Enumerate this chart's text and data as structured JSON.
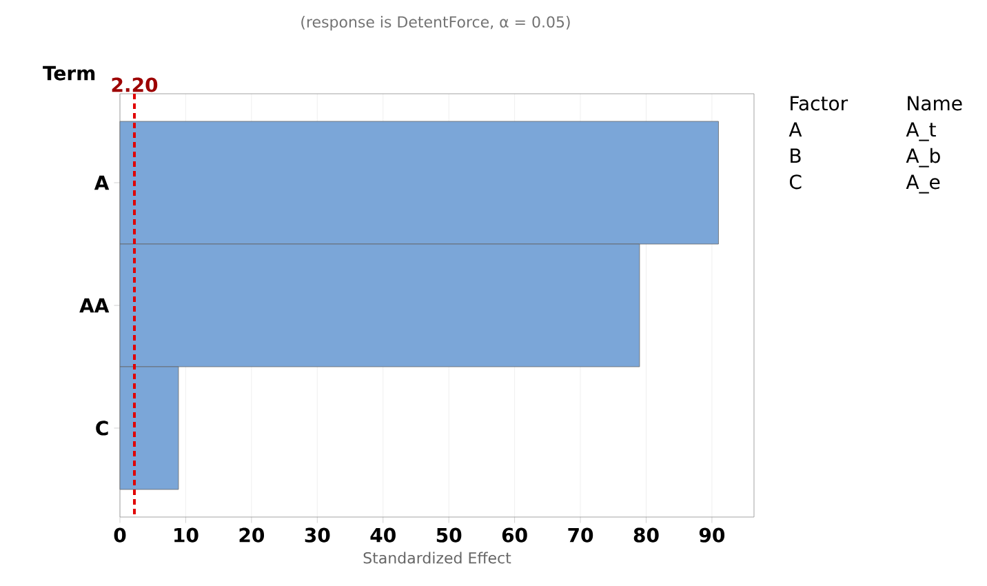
{
  "chart_data": {
    "type": "bar",
    "orientation": "horizontal",
    "subtitle": "(response is DetentForce, α = 0.05)",
    "ylabel": "Term",
    "xlabel": "Standardized Effect",
    "categories": [
      "A",
      "AA",
      "C"
    ],
    "values": [
      91,
      79,
      8.9
    ],
    "color": "#7ba6d8",
    "xlim": [
      0,
      96.4
    ],
    "xticks": [
      0,
      10,
      20,
      30,
      40,
      50,
      60,
      70,
      80,
      90
    ],
    "grid": "x",
    "ref_lines": [
      {
        "axis": "x",
        "value": 2.2,
        "label": "2.20",
        "color": "#e00000",
        "line_style": "dashed"
      }
    ],
    "annotations": [
      "Factor",
      "Name",
      "A",
      "A_t",
      "B",
      "A_b",
      "C",
      "A_e"
    ]
  }
}
